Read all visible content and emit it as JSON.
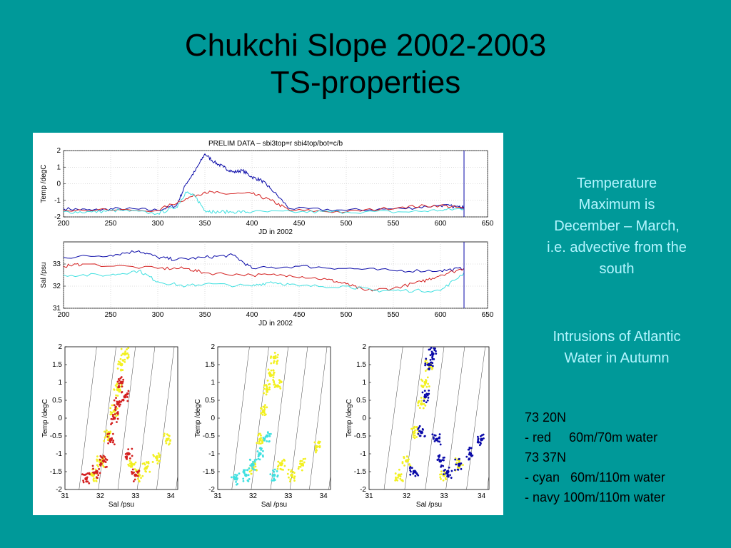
{
  "slide": {
    "title_line1": "Chukchi Slope 2002-2003",
    "title_line2": "TS-properties",
    "note_temperature": [
      "Temperature",
      "Maximum is",
      "December – March,",
      "i.e. advective from the",
      "south"
    ],
    "note_intrusions": [
      "Intrusions of Atlantic",
      "Water in Autumn"
    ],
    "legend": [
      "73 20N",
      "- red     60m/70m water",
      "73 37N",
      "- cyan   60m/110m water",
      "- navy 100m/110m water"
    ],
    "colors": {
      "background": "#009999",
      "note_text": "#b3f5ff",
      "red": "#d42020",
      "cyan": "#40e0e0",
      "navy": "#0a0aa8",
      "yellow": "#f2f020"
    }
  },
  "chart_data": [
    {
      "type": "line",
      "title": "PRELIM DATA – sbi3top=r sbi4top/bot=c/b",
      "xlabel": "JD in 2002",
      "ylabel": "Temp /degC",
      "xlim": [
        200,
        650
      ],
      "ylim": [
        -2,
        2
      ],
      "xticks": [
        200,
        250,
        300,
        350,
        400,
        450,
        500,
        550,
        600,
        650
      ],
      "yticks": [
        -2,
        -1,
        0,
        1,
        2
      ],
      "grid": true,
      "series": [
        {
          "color": "navy",
          "x": [
            200,
            230,
            260,
            300,
            320,
            330,
            340,
            350,
            360,
            370,
            380,
            390,
            400,
            410,
            420,
            440,
            500,
            560,
            600,
            620,
            625
          ],
          "y": [
            -1.5,
            -1.6,
            -1.5,
            -1.6,
            -1.3,
            0,
            0.8,
            1.8,
            1.3,
            1.0,
            0.7,
            0.8,
            0.4,
            0.2,
            -0.3,
            -1.5,
            -1.6,
            -1.5,
            -1.3,
            -1.4,
            -1.4
          ]
        },
        {
          "color": "red",
          "x": [
            200,
            300,
            330,
            350,
            370,
            400,
            420,
            440,
            500,
            560,
            600,
            625
          ],
          "y": [
            -1.6,
            -1.6,
            -0.9,
            -0.5,
            -0.6,
            -0.6,
            -1.0,
            -1.6,
            -1.7,
            -1.4,
            -1.3,
            -1.5
          ]
        },
        {
          "color": "cyan",
          "x": [
            200,
            230,
            260,
            300,
            320,
            330,
            340,
            350,
            360,
            380,
            400,
            450,
            500,
            560,
            600,
            625
          ],
          "y": [
            -1.7,
            -1.7,
            -1.6,
            -1.8,
            -1.4,
            -0.5,
            -0.8,
            -1.6,
            -1.7,
            -1.7,
            -1.7,
            -1.7,
            -1.7,
            -1.7,
            -1.6,
            -1.5
          ]
        }
      ]
    },
    {
      "type": "line",
      "xlabel": "JD in 2002",
      "ylabel": "Sal /psu",
      "xlim": [
        200,
        650
      ],
      "ylim": [
        31,
        34
      ],
      "xticks": [
        200,
        250,
        300,
        350,
        400,
        450,
        500,
        550,
        600,
        650
      ],
      "yticks": [
        31,
        32,
        33
      ],
      "grid": true,
      "series": [
        {
          "color": "navy",
          "x": [
            200,
            250,
            280,
            300,
            320,
            350,
            380,
            400,
            450,
            500,
            550,
            600,
            625
          ],
          "y": [
            33.3,
            33.4,
            33.6,
            33.3,
            33.2,
            33.3,
            33.4,
            32.8,
            32.9,
            32.8,
            32.7,
            32.7,
            32.8
          ]
        },
        {
          "color": "red",
          "x": [
            200,
            220,
            300,
            330,
            350,
            400,
            440,
            480,
            500,
            520,
            550,
            580,
            600,
            625
          ],
          "y": [
            32.9,
            33.0,
            32.8,
            32.8,
            32.6,
            32.5,
            32.5,
            32.3,
            32.1,
            31.8,
            31.9,
            32.2,
            32.5,
            32.8
          ]
        },
        {
          "color": "cyan",
          "x": [
            200,
            250,
            280,
            300,
            330,
            350,
            400,
            420,
            450,
            500,
            530,
            560,
            600,
            625
          ],
          "y": [
            32.5,
            32.5,
            32.7,
            32.2,
            32.0,
            32.1,
            32.0,
            32.2,
            32.0,
            32.0,
            31.8,
            31.8,
            31.8,
            32.6
          ]
        }
      ]
    },
    {
      "type": "scatter",
      "xlabel": "Sal /psu",
      "ylabel": "Temp /degC",
      "xlim": [
        31,
        34.2
      ],
      "ylim": [
        -2,
        2
      ],
      "xticks": [
        31,
        32,
        33,
        34
      ],
      "yticks": [
        -2,
        -1.5,
        -1,
        -0.5,
        0,
        0.5,
        1,
        1.5,
        2
      ],
      "series": [
        {
          "color": "yellow",
          "x": [
            31.8,
            32.0,
            32.2,
            32.4,
            32.5,
            32.6,
            32.7,
            32.9,
            33.1,
            33.3,
            33.6,
            33.9
          ],
          "y": [
            -1.6,
            -1.2,
            -0.5,
            0.2,
            0.8,
            1.5,
            1.8,
            -1.3,
            -1.6,
            -1.4,
            -1.1,
            -0.6
          ]
        },
        {
          "color": "red",
          "x": [
            31.6,
            31.9,
            32.1,
            32.3,
            32.4,
            32.5,
            32.6,
            32.7,
            32.8,
            33.0
          ],
          "y": [
            -1.7,
            -1.5,
            -1.2,
            -0.6,
            0.0,
            0.4,
            1.0,
            0.6,
            -1.0,
            -1.6
          ]
        }
      ]
    },
    {
      "type": "scatter",
      "xlabel": "Sal /psu",
      "ylabel": "Temp /degC",
      "xlim": [
        31,
        34.2
      ],
      "ylim": [
        -2,
        2
      ],
      "xticks": [
        31,
        32,
        33,
        34
      ],
      "yticks": [
        -2,
        -1.5,
        -1,
        -0.5,
        0,
        0.5,
        1,
        1.5,
        2
      ],
      "series": [
        {
          "color": "yellow",
          "x": [
            32.0,
            32.2,
            32.3,
            32.4,
            32.5,
            32.6,
            32.7,
            32.8,
            33.1,
            33.4,
            33.8
          ],
          "y": [
            -1.4,
            -0.6,
            0.2,
            0.8,
            1.2,
            1.7,
            0.9,
            -1.3,
            -1.6,
            -1.3,
            -0.8
          ]
        },
        {
          "color": "cyan",
          "x": [
            31.5,
            31.8,
            32.0,
            32.2,
            32.4,
            32.6
          ],
          "y": [
            -1.7,
            -1.6,
            -1.3,
            -1.0,
            -0.5,
            -1.6
          ]
        }
      ]
    },
    {
      "type": "scatter",
      "xlabel": "Sal /psu",
      "ylabel": "Temp /degC",
      "xlim": [
        31,
        34.2
      ],
      "ylim": [
        -2,
        2
      ],
      "xticks": [
        31,
        32,
        33,
        34
      ],
      "yticks": [
        -2,
        -1.5,
        -1,
        -0.5,
        0,
        0.5,
        1,
        1.5,
        2
      ],
      "series": [
        {
          "color": "yellow",
          "x": [
            31.8,
            32.0,
            32.2,
            32.4,
            32.5,
            32.6,
            33.0,
            33.4
          ],
          "y": [
            -1.6,
            -1.2,
            -0.4,
            0.4,
            1.0,
            1.5,
            -1.6,
            -1.3
          ]
        },
        {
          "color": "navy",
          "x": [
            32.2,
            32.4,
            32.5,
            32.6,
            32.7,
            32.8,
            32.9,
            33.1,
            33.4,
            33.7,
            34.0
          ],
          "y": [
            -1.5,
            -0.4,
            0.6,
            1.5,
            1.8,
            -0.6,
            -1.2,
            -1.5,
            -1.3,
            -1.0,
            -0.6
          ]
        }
      ]
    }
  ]
}
